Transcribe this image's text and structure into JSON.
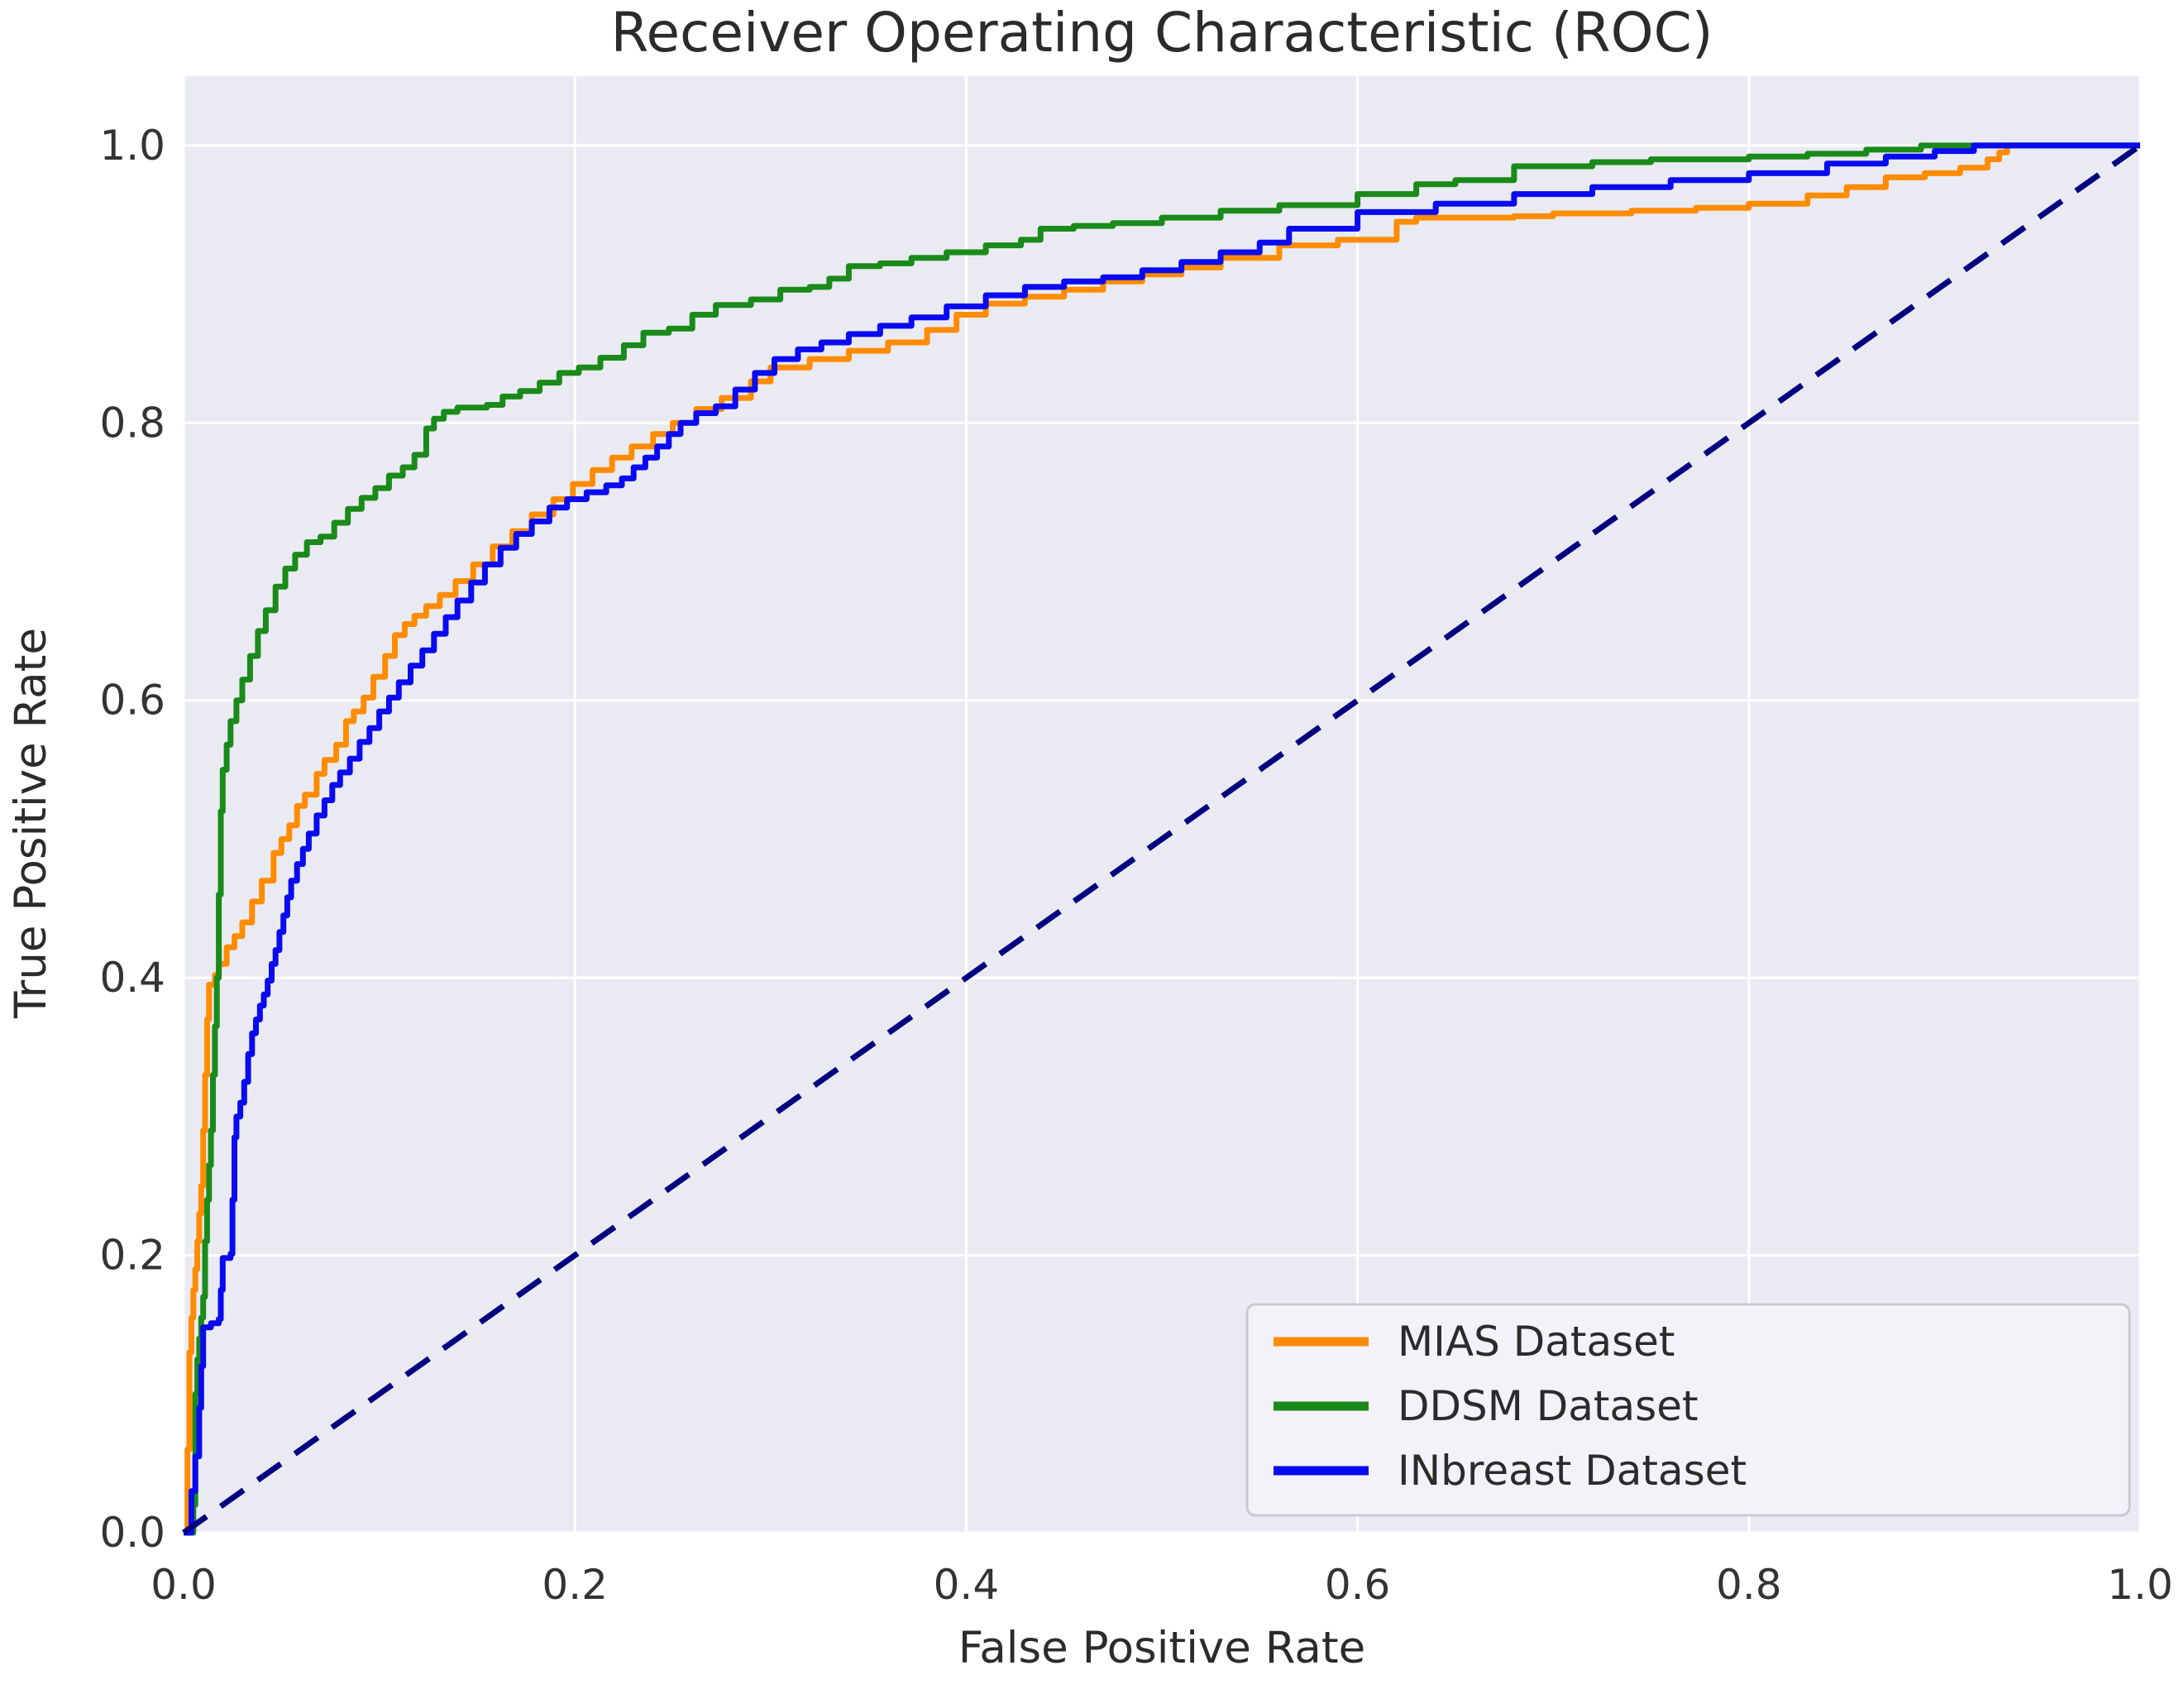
{
  "chart_data": {
    "type": "line",
    "title": "Receiver Operating Characteristic (ROC)",
    "xlabel": "False Positive Rate",
    "ylabel": "True Positive Rate",
    "xlim": [
      0.0,
      1.0
    ],
    "ylim": [
      0.0,
      1.05
    ],
    "xticks": [
      0.0,
      0.2,
      0.4,
      0.6,
      0.8,
      1.0
    ],
    "yticks": [
      0.0,
      0.2,
      0.4,
      0.6,
      0.8,
      1.0
    ],
    "xtick_labels": [
      "0.0",
      "0.2",
      "0.4",
      "0.6",
      "0.8",
      "1.0"
    ],
    "ytick_labels": [
      "0.0",
      "0.2",
      "0.4",
      "0.6",
      "0.8",
      "1.0"
    ],
    "grid": true,
    "plot_background": "#eaeaf2",
    "grid_color": "#ffffff",
    "legend": {
      "position": "lower right",
      "entries": [
        "MIAS Dataset",
        "DDSM Dataset",
        "INbreast Dataset"
      ]
    },
    "series": [
      {
        "name": "MIAS Dataset",
        "color": "#ff8c00",
        "style": "solid",
        "step": true,
        "in_legend": true,
        "points": [
          [
            0,
            0
          ],
          [
            0.002,
            0.06
          ],
          [
            0.003,
            0.13
          ],
          [
            0.004,
            0.155
          ],
          [
            0.005,
            0.175
          ],
          [
            0.006,
            0.19
          ],
          [
            0.007,
            0.21
          ],
          [
            0.008,
            0.23
          ],
          [
            0.009,
            0.25
          ],
          [
            0.01,
            0.29
          ],
          [
            0.011,
            0.33
          ],
          [
            0.012,
            0.37
          ],
          [
            0.013,
            0.395
          ],
          [
            0.016,
            0.402
          ],
          [
            0.018,
            0.41
          ],
          [
            0.022,
            0.422
          ],
          [
            0.026,
            0.43
          ],
          [
            0.03,
            0.44
          ],
          [
            0.035,
            0.455
          ],
          [
            0.04,
            0.47
          ],
          [
            0.046,
            0.49
          ],
          [
            0.05,
            0.5
          ],
          [
            0.054,
            0.51
          ],
          [
            0.058,
            0.524
          ],
          [
            0.062,
            0.532
          ],
          [
            0.068,
            0.547
          ],
          [
            0.072,
            0.557
          ],
          [
            0.078,
            0.568
          ],
          [
            0.083,
            0.585
          ],
          [
            0.087,
            0.592
          ],
          [
            0.092,
            0.602
          ],
          [
            0.097,
            0.617
          ],
          [
            0.103,
            0.632
          ],
          [
            0.108,
            0.647
          ],
          [
            0.113,
            0.655
          ],
          [
            0.118,
            0.661
          ],
          [
            0.124,
            0.668
          ],
          [
            0.131,
            0.676
          ],
          [
            0.139,
            0.686
          ],
          [
            0.148,
            0.698
          ],
          [
            0.158,
            0.711
          ],
          [
            0.168,
            0.722
          ],
          [
            0.178,
            0.734
          ],
          [
            0.189,
            0.745
          ],
          [
            0.199,
            0.756
          ],
          [
            0.209,
            0.766
          ],
          [
            0.219,
            0.775
          ],
          [
            0.229,
            0.783
          ],
          [
            0.24,
            0.792
          ],
          [
            0.25,
            0.8
          ],
          [
            0.262,
            0.81
          ],
          [
            0.275,
            0.818
          ],
          [
            0.29,
            0.83
          ],
          [
            0.3,
            0.84
          ],
          [
            0.32,
            0.846
          ],
          [
            0.34,
            0.852
          ],
          [
            0.36,
            0.858
          ],
          [
            0.38,
            0.867
          ],
          [
            0.395,
            0.878
          ],
          [
            0.41,
            0.886
          ],
          [
            0.43,
            0.891
          ],
          [
            0.45,
            0.896
          ],
          [
            0.47,
            0.902
          ],
          [
            0.49,
            0.907
          ],
          [
            0.51,
            0.912
          ],
          [
            0.53,
            0.919
          ],
          [
            0.56,
            0.928
          ],
          [
            0.59,
            0.932
          ],
          [
            0.62,
            0.945
          ],
          [
            0.63,
            0.948
          ],
          [
            0.68,
            0.949
          ],
          [
            0.7,
            0.951
          ],
          [
            0.74,
            0.953
          ],
          [
            0.773,
            0.955
          ],
          [
            0.8,
            0.958
          ],
          [
            0.83,
            0.964
          ],
          [
            0.85,
            0.97
          ],
          [
            0.87,
            0.977
          ],
          [
            0.89,
            0.98
          ],
          [
            0.908,
            0.984
          ],
          [
            0.922,
            0.99
          ],
          [
            0.928,
            0.995
          ],
          [
            0.932,
            1.0
          ],
          [
            1.0,
            1.0
          ]
        ]
      },
      {
        "name": "DDSM Dataset",
        "color": "#1a8a1a",
        "style": "solid",
        "step": true,
        "in_legend": true,
        "points": [
          [
            0,
            0
          ],
          [
            0.005,
            0.02
          ],
          [
            0.006,
            0.1
          ],
          [
            0.007,
            0.125
          ],
          [
            0.008,
            0.14
          ],
          [
            0.009,
            0.155
          ],
          [
            0.01,
            0.17
          ],
          [
            0.011,
            0.21
          ],
          [
            0.012,
            0.24
          ],
          [
            0.013,
            0.265
          ],
          [
            0.014,
            0.29
          ],
          [
            0.015,
            0.33
          ],
          [
            0.016,
            0.365
          ],
          [
            0.017,
            0.4
          ],
          [
            0.018,
            0.46
          ],
          [
            0.019,
            0.52
          ],
          [
            0.02,
            0.55
          ],
          [
            0.022,
            0.568
          ],
          [
            0.024,
            0.585
          ],
          [
            0.027,
            0.6
          ],
          [
            0.03,
            0.615
          ],
          [
            0.034,
            0.632
          ],
          [
            0.038,
            0.65
          ],
          [
            0.042,
            0.665
          ],
          [
            0.047,
            0.682
          ],
          [
            0.052,
            0.695
          ],
          [
            0.057,
            0.705
          ],
          [
            0.063,
            0.714
          ],
          [
            0.07,
            0.718
          ],
          [
            0.077,
            0.728
          ],
          [
            0.084,
            0.738
          ],
          [
            0.091,
            0.746
          ],
          [
            0.098,
            0.753
          ],
          [
            0.105,
            0.762
          ],
          [
            0.112,
            0.768
          ],
          [
            0.118,
            0.777
          ],
          [
            0.124,
            0.796
          ],
          [
            0.128,
            0.803
          ],
          [
            0.133,
            0.808
          ],
          [
            0.14,
            0.811
          ],
          [
            0.155,
            0.813
          ],
          [
            0.163,
            0.819
          ],
          [
            0.172,
            0.823
          ],
          [
            0.182,
            0.829
          ],
          [
            0.192,
            0.836
          ],
          [
            0.202,
            0.84
          ],
          [
            0.213,
            0.847
          ],
          [
            0.225,
            0.856
          ],
          [
            0.235,
            0.865
          ],
          [
            0.248,
            0.868
          ],
          [
            0.26,
            0.878
          ],
          [
            0.272,
            0.885
          ],
          [
            0.29,
            0.889
          ],
          [
            0.305,
            0.896
          ],
          [
            0.32,
            0.898
          ],
          [
            0.33,
            0.904
          ],
          [
            0.34,
            0.913
          ],
          [
            0.356,
            0.915
          ],
          [
            0.372,
            0.919
          ],
          [
            0.39,
            0.923
          ],
          [
            0.41,
            0.928
          ],
          [
            0.428,
            0.932
          ],
          [
            0.438,
            0.94
          ],
          [
            0.455,
            0.942
          ],
          [
            0.475,
            0.944
          ],
          [
            0.5,
            0.948
          ],
          [
            0.53,
            0.953
          ],
          [
            0.56,
            0.957
          ],
          [
            0.6,
            0.965
          ],
          [
            0.63,
            0.972
          ],
          [
            0.65,
            0.975
          ],
          [
            0.68,
            0.985
          ],
          [
            0.72,
            0.988
          ],
          [
            0.75,
            0.99
          ],
          [
            0.8,
            0.992
          ],
          [
            0.83,
            0.994
          ],
          [
            0.86,
            0.997
          ],
          [
            0.888,
            1.0
          ],
          [
            1.0,
            1.0
          ]
        ]
      },
      {
        "name": "INbreast Dataset",
        "color": "#0a0af0",
        "style": "solid",
        "step": true,
        "in_legend": true,
        "points": [
          [
            0,
            0
          ],
          [
            0.004,
            0.03
          ],
          [
            0.006,
            0.055
          ],
          [
            0.008,
            0.09
          ],
          [
            0.009,
            0.12
          ],
          [
            0.01,
            0.148
          ],
          [
            0.014,
            0.151
          ],
          [
            0.018,
            0.154
          ],
          [
            0.019,
            0.175
          ],
          [
            0.02,
            0.198
          ],
          [
            0.024,
            0.201
          ],
          [
            0.025,
            0.24
          ],
          [
            0.026,
            0.285
          ],
          [
            0.027,
            0.3
          ],
          [
            0.029,
            0.31
          ],
          [
            0.031,
            0.325
          ],
          [
            0.033,
            0.345
          ],
          [
            0.035,
            0.36
          ],
          [
            0.037,
            0.37
          ],
          [
            0.039,
            0.38
          ],
          [
            0.041,
            0.388
          ],
          [
            0.043,
            0.398
          ],
          [
            0.045,
            0.41
          ],
          [
            0.047,
            0.42
          ],
          [
            0.049,
            0.433
          ],
          [
            0.051,
            0.445
          ],
          [
            0.053,
            0.458
          ],
          [
            0.055,
            0.47
          ],
          [
            0.058,
            0.482
          ],
          [
            0.061,
            0.493
          ],
          [
            0.064,
            0.504
          ],
          [
            0.068,
            0.517
          ],
          [
            0.072,
            0.528
          ],
          [
            0.076,
            0.539
          ],
          [
            0.08,
            0.548
          ],
          [
            0.085,
            0.558
          ],
          [
            0.09,
            0.57
          ],
          [
            0.095,
            0.58
          ],
          [
            0.1,
            0.592
          ],
          [
            0.105,
            0.602
          ],
          [
            0.11,
            0.613
          ],
          [
            0.116,
            0.625
          ],
          [
            0.122,
            0.636
          ],
          [
            0.128,
            0.648
          ],
          [
            0.134,
            0.66
          ],
          [
            0.14,
            0.672
          ],
          [
            0.147,
            0.685
          ],
          [
            0.154,
            0.698
          ],
          [
            0.162,
            0.71
          ],
          [
            0.17,
            0.72
          ],
          [
            0.178,
            0.729
          ],
          [
            0.187,
            0.739
          ],
          [
            0.196,
            0.745
          ],
          [
            0.206,
            0.75
          ],
          [
            0.216,
            0.755
          ],
          [
            0.224,
            0.76
          ],
          [
            0.23,
            0.768
          ],
          [
            0.236,
            0.775
          ],
          [
            0.242,
            0.783
          ],
          [
            0.248,
            0.792
          ],
          [
            0.254,
            0.8
          ],
          [
            0.262,
            0.807
          ],
          [
            0.272,
            0.812
          ],
          [
            0.282,
            0.824
          ],
          [
            0.292,
            0.836
          ],
          [
            0.302,
            0.846
          ],
          [
            0.314,
            0.853
          ],
          [
            0.326,
            0.858
          ],
          [
            0.34,
            0.864
          ],
          [
            0.356,
            0.87
          ],
          [
            0.372,
            0.876
          ],
          [
            0.39,
            0.884
          ],
          [
            0.41,
            0.892
          ],
          [
            0.43,
            0.898
          ],
          [
            0.45,
            0.902
          ],
          [
            0.47,
            0.905
          ],
          [
            0.49,
            0.91
          ],
          [
            0.51,
            0.916
          ],
          [
            0.53,
            0.923
          ],
          [
            0.55,
            0.93
          ],
          [
            0.565,
            0.94
          ],
          [
            0.6,
            0.952
          ],
          [
            0.64,
            0.958
          ],
          [
            0.68,
            0.965
          ],
          [
            0.72,
            0.97
          ],
          [
            0.76,
            0.975
          ],
          [
            0.8,
            0.98
          ],
          [
            0.84,
            0.987
          ],
          [
            0.87,
            0.992
          ],
          [
            0.895,
            0.996
          ],
          [
            0.915,
            1.0
          ],
          [
            1.0,
            1.0
          ]
        ]
      },
      {
        "name": "chance-diagonal",
        "color": "#000080",
        "style": "dashed",
        "step": false,
        "in_legend": false,
        "points": [
          [
            0,
            0
          ],
          [
            1,
            1
          ]
        ]
      }
    ]
  }
}
